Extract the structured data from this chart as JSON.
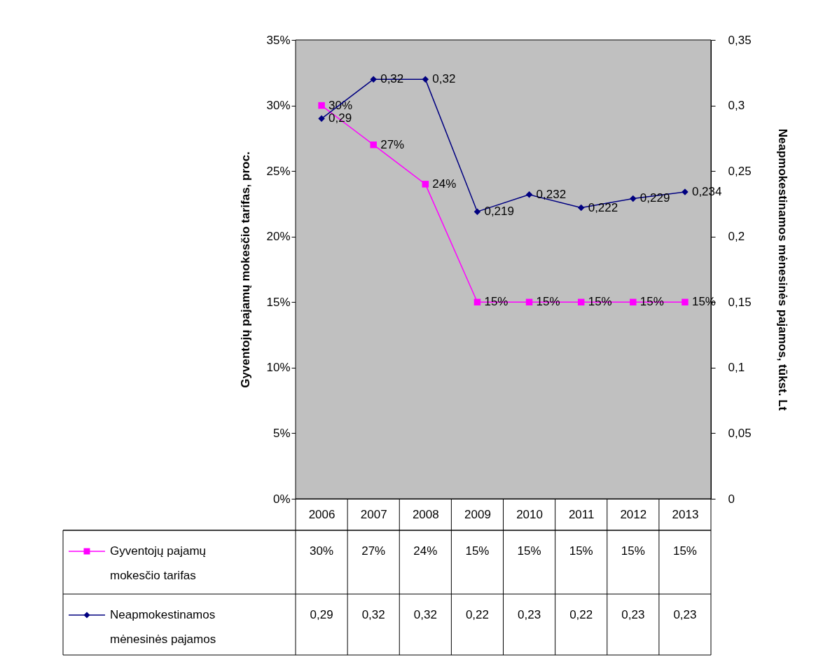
{
  "chart_data": {
    "type": "line",
    "categories": [
      "2006",
      "2007",
      "2008",
      "2009",
      "2010",
      "2011",
      "2012",
      "2013"
    ],
    "ylabel": "Gyventojų pajamų mokesčio tarifas, proc.",
    "y2label": "Neapmokestinamos mėnesinės pajamos, tūkst. Lt",
    "ylim": [
      0,
      35
    ],
    "yticks": [
      {
        "value": 0,
        "label": "0%"
      },
      {
        "value": 5,
        "label": "5%"
      },
      {
        "value": 10,
        "label": "10%"
      },
      {
        "value": 15,
        "label": "15%"
      },
      {
        "value": 20,
        "label": "20%"
      },
      {
        "value": 25,
        "label": "25%"
      },
      {
        "value": 30,
        "label": "30%"
      },
      {
        "value": 35,
        "label": "35%"
      }
    ],
    "y2lim": [
      0,
      0.35
    ],
    "y2ticks": [
      0,
      {
        "value": 0.05,
        "label": "0,05"
      },
      {
        "value": 0.1,
        "label": "0,1"
      },
      {
        "value": 0.15,
        "label": "0,15"
      },
      {
        "value": 0.2,
        "label": "0,2"
      },
      {
        "value": 0.25,
        "label": "0,25"
      },
      {
        "value": 0.3,
        "label": "0,3"
      },
      {
        "value": 0.35,
        "label": "0,35"
      }
    ],
    "legend": "bottom left",
    "series": [
      {
        "name": "Gyventojų pajamų mokesčio tarifas",
        "color": "#ff00ff",
        "marker": "square",
        "values": [
          30,
          27,
          24,
          15,
          15,
          15,
          15,
          15
        ],
        "value_labels": [
          "30%",
          "27%",
          "24%",
          "15%",
          "15%",
          "15%",
          "15%",
          "15%"
        ]
      },
      {
        "name": "Neapmokestinamos mėnesinės pajamos",
        "color": "#000080",
        "marker": "diamond",
        "axis": "y2",
        "values": [
          0.29,
          0.32,
          0.32,
          0.219,
          0.232,
          0.222,
          0.229,
          0.234
        ],
        "value_labels": [
          "0,29",
          "0,32",
          "0,32",
          "0,219",
          "0,232",
          "0,222",
          "0,229",
          "0,234"
        ]
      }
    ],
    "annotations": [
      "30%",
      "27%",
      "24%",
      "15%",
      "15%",
      "15%",
      "15%",
      "15%",
      "0,29",
      "0,32",
      "0,32",
      "0,22",
      "0,23",
      "0,22",
      "0,23",
      "0,23"
    ]
  }
}
